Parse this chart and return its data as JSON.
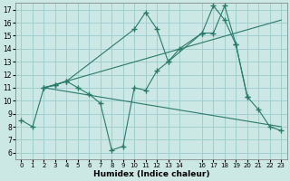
{
  "xlabel": "Humidex (Indice chaleur)",
  "bg_color": "#cce8e4",
  "grid_color": "#99cccc",
  "line_color": "#2a7a6a",
  "xlim": [
    -0.5,
    23.5
  ],
  "ylim": [
    5.5,
    17.5
  ],
  "yticks": [
    6,
    7,
    8,
    9,
    10,
    11,
    12,
    13,
    14,
    15,
    16,
    17
  ],
  "xtick_positions": [
    0,
    1,
    2,
    3,
    4,
    5,
    6,
    7,
    8,
    9,
    10,
    11,
    12,
    13,
    14,
    16,
    17,
    18,
    19,
    20,
    21,
    22,
    23
  ],
  "xtick_labels": [
    "0",
    "1",
    "2",
    "3",
    "4",
    "5",
    "6",
    "7",
    "8",
    "9",
    "10",
    "11",
    "12",
    "13",
    "14",
    "16",
    "17",
    "18",
    "19",
    "20",
    "21",
    "22",
    "23"
  ],
  "series": [
    {
      "x": [
        0,
        1,
        2,
        3,
        4,
        5,
        6,
        7,
        8,
        9,
        10,
        11,
        12,
        13,
        14,
        16,
        17,
        18,
        19,
        20,
        21,
        22,
        23
      ],
      "y": [
        8.5,
        8.0,
        11.0,
        11.2,
        11.5,
        11.0,
        10.5,
        9.8,
        6.2,
        6.5,
        11.0,
        10.8,
        12.3,
        13.0,
        14.0,
        15.2,
        15.2,
        17.3,
        14.3,
        10.3,
        9.3,
        8.0,
        7.7
      ],
      "marker": true
    },
    {
      "x": [
        2,
        3,
        4,
        10,
        11,
        12,
        13,
        16,
        17,
        18,
        19,
        20
      ],
      "y": [
        11.0,
        11.2,
        11.5,
        15.5,
        16.8,
        15.5,
        13.0,
        15.2,
        17.3,
        16.2,
        14.3,
        10.3
      ],
      "marker": true
    },
    {
      "x": [
        2,
        23
      ],
      "y": [
        11.0,
        16.2
      ],
      "marker": false
    },
    {
      "x": [
        2,
        23
      ],
      "y": [
        11.0,
        8.0
      ],
      "marker": false
    }
  ]
}
